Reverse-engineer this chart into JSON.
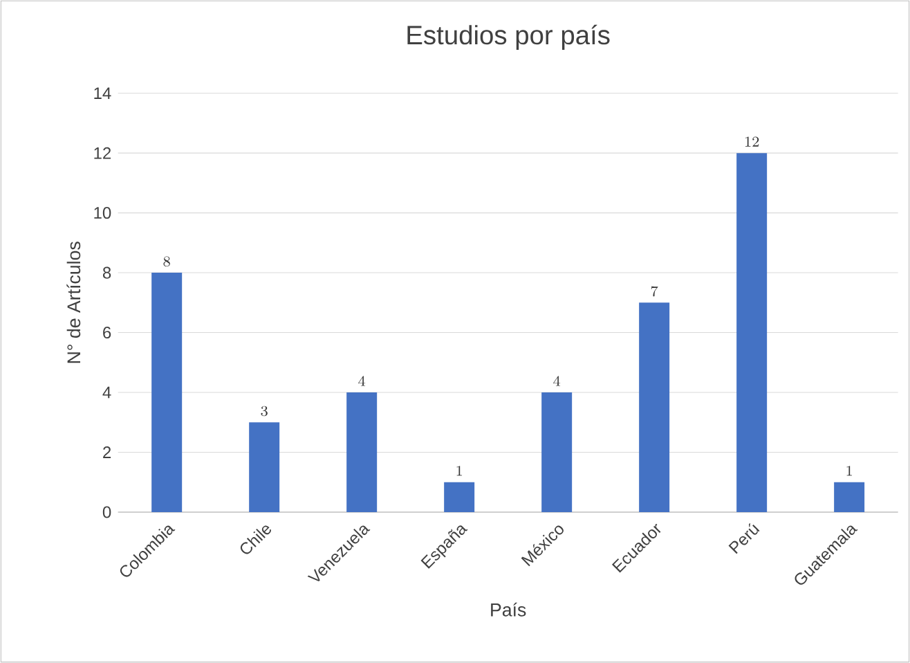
{
  "chart_data": {
    "type": "bar",
    "title": "Estudios por país",
    "xlabel": "País",
    "ylabel": "N° de Artículos",
    "categories": [
      "Colombia",
      "Chile",
      "Venezuela",
      "España",
      "México",
      "Ecuador",
      "Perú",
      "Guatemala"
    ],
    "values": [
      8,
      3,
      4,
      1,
      4,
      7,
      12,
      1
    ],
    "color": "#4472c4",
    "ylim": [
      0,
      14
    ],
    "yticks": [
      0,
      2,
      4,
      6,
      8,
      10,
      12,
      14
    ],
    "grid": "y",
    "data_labels": true
  }
}
